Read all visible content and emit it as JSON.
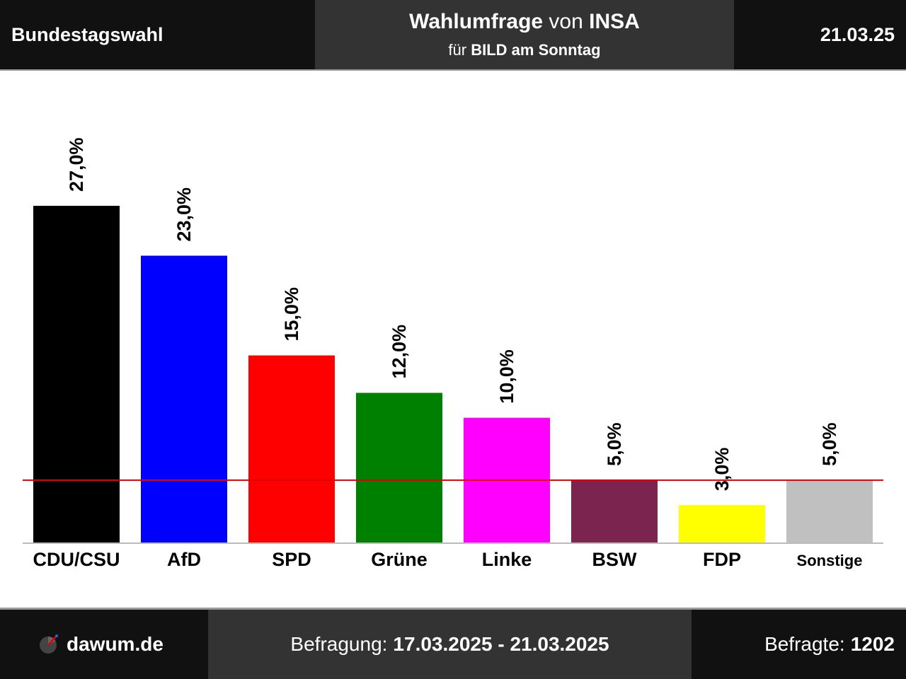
{
  "header": {
    "left": "Bundestagswahl",
    "title_bold_1": "Wahlumfrage",
    "title_normal": " von ",
    "title_bold_2": "INSA",
    "subtitle_normal": "für ",
    "subtitle_bold": "BILD am Sonntag",
    "date": "21.03.25"
  },
  "footer": {
    "logo_text": "dawum.de",
    "survey_label": "Befragung: ",
    "survey_period": "17.03.2025 - 21.03.2025",
    "respondents_label": "Befragte: ",
    "respondents": "1202"
  },
  "chart_data": {
    "type": "bar",
    "categories": [
      "CDU/CSU",
      "AfD",
      "SPD",
      "Grüne",
      "Linke",
      "BSW",
      "FDP",
      "Sonstige"
    ],
    "values": [
      27.0,
      23.0,
      15.0,
      12.0,
      10.0,
      5.0,
      3.0,
      5.0
    ],
    "value_labels": [
      "27,0%",
      "23,0%",
      "15,0%",
      "12,0%",
      "10,0%",
      "5,0%",
      "3,0%",
      "5,0%"
    ],
    "colors": [
      "#000000",
      "#0000ff",
      "#ff0000",
      "#008000",
      "#ff00ff",
      "#7b2450",
      "#ffff00",
      "#c0c0c0"
    ],
    "threshold": 5.0,
    "threshold_color": "#e00000",
    "ylim": [
      0,
      27
    ],
    "grid": false,
    "legend": "none"
  }
}
